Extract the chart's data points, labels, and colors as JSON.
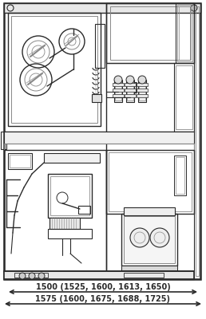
{
  "bg_color": "#ffffff",
  "line_color": "#2a2a2a",
  "gray_color": "#888888",
  "light_gray": "#cccccc",
  "mid_gray": "#aaaaaa",
  "dim_line1_text": "1500 (1525, 1600, 1613, 1650)",
  "dim_line2_text": "1575 (1600, 1675, 1688, 1725)",
  "fig_width": 2.58,
  "fig_height": 4.0,
  "dpi": 100
}
